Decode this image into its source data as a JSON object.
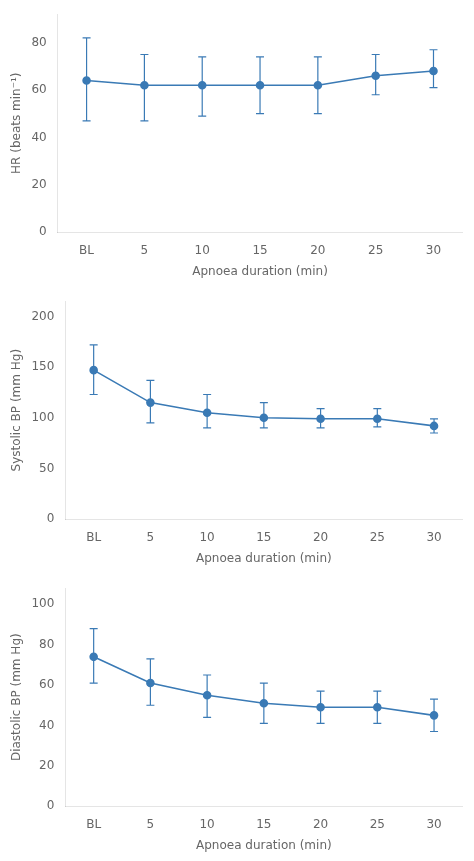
{
  "chart_data": [
    {
      "type": "line",
      "x_label": "Apnoea duration (min)",
      "y_label": "HR (beats min⁻¹)",
      "categories": [
        "BL",
        "5",
        "10",
        "15",
        "20",
        "25",
        "30"
      ],
      "values": [
        64,
        62,
        62,
        62,
        62,
        66,
        68
      ],
      "error_upper": [
        18,
        13,
        12,
        12,
        12,
        9,
        9
      ],
      "error_lower": [
        17,
        15,
        13,
        12,
        12,
        8,
        7
      ],
      "color": "#3a7ab5",
      "marker": "circle",
      "grid": false,
      "ylim": [
        0,
        92
      ],
      "yticks": [
        0,
        20,
        40,
        60,
        80
      ]
    },
    {
      "type": "line",
      "x_label": "Apnoea duration (min)",
      "y_label": "Systolic BP (mm Hg)",
      "categories": [
        "BL",
        "5",
        "10",
        "15",
        "20",
        "25",
        "30"
      ],
      "values": [
        147,
        115,
        105,
        100,
        99,
        99,
        92
      ],
      "error_upper": [
        25,
        22,
        18,
        15,
        10,
        10,
        7
      ],
      "error_lower": [
        24,
        20,
        15,
        10,
        9,
        8,
        7
      ],
      "color": "#3a7ab5",
      "marker": "circle",
      "grid": false,
      "ylim": [
        0,
        215
      ],
      "yticks": [
        0,
        50,
        100,
        150,
        200
      ]
    },
    {
      "type": "line",
      "x_label": "Apnoea duration (min)",
      "y_label": "Diastolic BP (mm Hg)",
      "categories": [
        "BL",
        "5",
        "10",
        "15",
        "20",
        "25",
        "30"
      ],
      "values": [
        74,
        61,
        55,
        51,
        49,
        49,
        45
      ],
      "error_upper": [
        14,
        12,
        10,
        10,
        8,
        8,
        8
      ],
      "error_lower": [
        13,
        11,
        11,
        10,
        8,
        8,
        8
      ],
      "color": "#3a7ab5",
      "marker": "circle",
      "grid": false,
      "ylim": [
        0,
        108
      ],
      "yticks": [
        0,
        20,
        40,
        60,
        80,
        100
      ]
    }
  ]
}
